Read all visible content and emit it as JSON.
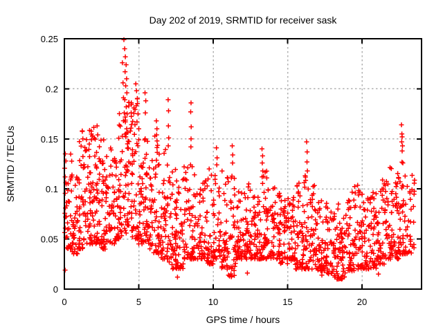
{
  "figure": {
    "background": "#ffffff",
    "text_color": "#000000",
    "frame_color": "#000000",
    "grid_color": "#b0b0b0"
  },
  "chart_data": {
    "type": "scatter",
    "title": "Day 202 of 2019, SRMTID for receiver sask",
    "xlabel": "GPS time / hours",
    "ylabel": "SRMTID / TECUs",
    "xlim": [
      0,
      24
    ],
    "ylim": [
      0,
      0.25
    ],
    "xticks": [
      {
        "v": 0,
        "label": "0"
      },
      {
        "v": 5,
        "label": "5"
      },
      {
        "v": 10,
        "label": "10"
      },
      {
        "v": 15,
        "label": "15"
      },
      {
        "v": 20,
        "label": "20"
      }
    ],
    "yticks": [
      {
        "v": 0,
        "label": "0"
      },
      {
        "v": 0.05,
        "label": "0.05"
      },
      {
        "v": 0.1,
        "label": "0.1"
      },
      {
        "v": 0.15,
        "label": "0.15"
      },
      {
        "v": 0.2,
        "label": "0.2"
      },
      {
        "v": 0.25,
        "label": "0.25"
      }
    ],
    "grid": true,
    "legend": "none",
    "series": [
      {
        "name": "SRMTID",
        "marker": "plus",
        "color": "#ff0000",
        "density_bins_format": [
          "hour_start",
          "hour_end",
          "y_min",
          "y_max",
          "point_count",
          "skew_toward_min"
        ],
        "density_bins": [
          [
            0.0,
            0.5,
            0.04,
            0.14,
            40,
            1.6
          ],
          [
            0.5,
            1.0,
            0.035,
            0.125,
            40,
            1.7
          ],
          [
            1.0,
            1.5,
            0.04,
            0.158,
            45,
            1.7
          ],
          [
            1.5,
            2.0,
            0.045,
            0.162,
            45,
            1.7
          ],
          [
            2.0,
            2.5,
            0.045,
            0.158,
            45,
            1.7
          ],
          [
            2.5,
            3.0,
            0.04,
            0.15,
            45,
            1.8
          ],
          [
            3.0,
            3.5,
            0.045,
            0.145,
            42,
            1.8
          ],
          [
            3.5,
            4.0,
            0.05,
            0.185,
            45,
            2.0
          ],
          [
            4.0,
            4.5,
            0.055,
            0.2,
            48,
            1.5
          ],
          [
            4.5,
            5.0,
            0.05,
            0.195,
            48,
            1.5
          ],
          [
            5.0,
            5.5,
            0.045,
            0.165,
            42,
            2.0
          ],
          [
            5.5,
            6.0,
            0.04,
            0.15,
            40,
            1.9
          ],
          [
            6.0,
            6.5,
            0.035,
            0.155,
            42,
            2.0
          ],
          [
            6.5,
            7.0,
            0.03,
            0.145,
            42,
            2.0
          ],
          [
            7.0,
            7.5,
            0.02,
            0.12,
            40,
            1.8
          ],
          [
            7.5,
            8.0,
            0.02,
            0.115,
            40,
            1.8
          ],
          [
            8.0,
            8.5,
            0.03,
            0.125,
            38,
            1.9
          ],
          [
            8.5,
            9.0,
            0.03,
            0.128,
            38,
            1.9
          ],
          [
            9.0,
            9.5,
            0.03,
            0.11,
            38,
            1.8
          ],
          [
            9.5,
            10.0,
            0.025,
            0.122,
            38,
            1.9
          ],
          [
            10.0,
            10.5,
            0.03,
            0.115,
            38,
            1.8
          ],
          [
            10.5,
            11.0,
            0.02,
            0.118,
            38,
            1.9
          ],
          [
            11.0,
            11.5,
            0.012,
            0.12,
            38,
            1.9
          ],
          [
            11.5,
            12.0,
            0.03,
            0.102,
            38,
            1.8
          ],
          [
            12.0,
            12.5,
            0.03,
            0.108,
            38,
            1.8
          ],
          [
            12.5,
            13.0,
            0.03,
            0.1,
            38,
            1.8
          ],
          [
            13.0,
            13.5,
            0.03,
            0.12,
            38,
            1.9
          ],
          [
            13.5,
            14.0,
            0.03,
            0.118,
            38,
            1.9
          ],
          [
            14.0,
            14.5,
            0.03,
            0.102,
            38,
            1.8
          ],
          [
            14.5,
            15.0,
            0.025,
            0.095,
            38,
            1.7
          ],
          [
            15.0,
            15.5,
            0.028,
            0.095,
            38,
            1.7
          ],
          [
            15.5,
            16.0,
            0.02,
            0.112,
            38,
            1.8
          ],
          [
            16.0,
            16.5,
            0.02,
            0.122,
            40,
            1.9
          ],
          [
            16.5,
            17.0,
            0.02,
            0.108,
            38,
            1.8
          ],
          [
            17.0,
            17.5,
            0.018,
            0.098,
            38,
            1.8
          ],
          [
            17.5,
            18.0,
            0.015,
            0.09,
            38,
            1.7
          ],
          [
            18.0,
            18.5,
            0.01,
            0.088,
            38,
            1.7
          ],
          [
            18.5,
            19.0,
            0.01,
            0.092,
            38,
            1.7
          ],
          [
            19.0,
            19.5,
            0.018,
            0.102,
            38,
            1.8
          ],
          [
            19.5,
            20.0,
            0.02,
            0.108,
            38,
            1.8
          ],
          [
            20.0,
            20.5,
            0.02,
            0.095,
            38,
            1.7
          ],
          [
            20.5,
            21.0,
            0.02,
            0.102,
            38,
            1.8
          ],
          [
            21.0,
            21.5,
            0.025,
            0.112,
            38,
            1.8
          ],
          [
            21.5,
            22.0,
            0.03,
            0.125,
            40,
            1.9
          ],
          [
            22.0,
            22.5,
            0.03,
            0.122,
            40,
            1.9
          ],
          [
            22.5,
            23.0,
            0.035,
            0.128,
            40,
            1.9
          ],
          [
            23.0,
            23.55,
            0.035,
            0.115,
            30,
            1.6
          ]
        ],
        "feature_points_format": [
          "hour",
          "srmtid_tecus"
        ],
        "feature_points": [
          [
            0.06,
            0.135
          ],
          [
            0.1,
            0.128
          ],
          [
            0.05,
            0.112
          ],
          [
            0.12,
            0.105
          ],
          [
            0.05,
            0.019
          ],
          [
            1.2,
            0.158
          ],
          [
            1.24,
            0.15
          ],
          [
            2.2,
            0.163
          ],
          [
            2.24,
            0.154
          ],
          [
            3.9,
            0.226
          ],
          [
            3.94,
            0.206
          ],
          [
            3.97,
            0.191
          ],
          [
            4.0,
            0.249
          ],
          [
            4.05,
            0.24
          ],
          [
            4.1,
            0.232
          ],
          [
            4.15,
            0.224
          ],
          [
            4.08,
            0.217
          ],
          [
            4.18,
            0.21
          ],
          [
            4.12,
            0.203
          ],
          [
            4.2,
            0.196
          ],
          [
            4.06,
            0.189
          ],
          [
            4.16,
            0.182
          ],
          [
            4.22,
            0.175
          ],
          [
            4.1,
            0.167
          ],
          [
            4.19,
            0.16
          ],
          [
            4.13,
            0.152
          ],
          [
            4.24,
            0.145
          ],
          [
            4.8,
            0.205
          ],
          [
            4.85,
            0.198
          ],
          [
            4.9,
            0.19
          ],
          [
            4.83,
            0.183
          ],
          [
            4.95,
            0.175
          ],
          [
            4.88,
            0.167
          ],
          [
            5.0,
            0.16
          ],
          [
            5.42,
            0.196
          ],
          [
            5.47,
            0.188
          ],
          [
            5.44,
            0.176
          ],
          [
            6.18,
            0.168
          ],
          [
            6.22,
            0.16
          ],
          [
            6.2,
            0.154
          ],
          [
            6.23,
            0.148
          ],
          [
            6.97,
            0.189
          ],
          [
            7.0,
            0.178
          ],
          [
            6.99,
            0.163
          ],
          [
            7.01,
            0.151
          ],
          [
            6.98,
            0.143
          ],
          [
            8.51,
            0.186
          ],
          [
            8.49,
            0.177
          ],
          [
            8.52,
            0.162
          ],
          [
            8.51,
            0.15
          ],
          [
            8.5,
            0.142
          ],
          [
            10.22,
            0.141
          ],
          [
            10.26,
            0.131
          ],
          [
            10.24,
            0.124
          ],
          [
            11.28,
            0.143
          ],
          [
            11.31,
            0.134
          ],
          [
            11.3,
            0.126
          ],
          [
            13.28,
            0.14
          ],
          [
            13.32,
            0.133
          ],
          [
            13.3,
            0.126
          ],
          [
            13.33,
            0.118
          ],
          [
            13.29,
            0.112
          ],
          [
            16.28,
            0.147
          ],
          [
            16.31,
            0.137
          ],
          [
            16.3,
            0.127
          ],
          [
            16.33,
            0.118
          ],
          [
            22.65,
            0.164
          ],
          [
            22.68,
            0.155
          ],
          [
            22.7,
            0.152
          ],
          [
            22.67,
            0.147
          ],
          [
            22.72,
            0.143
          ],
          [
            22.7,
            0.138
          ],
          [
            7.6,
            0.012
          ],
          [
            11.1,
            0.013
          ],
          [
            12.3,
            0.016
          ],
          [
            17.3,
            0.014
          ],
          [
            18.4,
            0.01
          ],
          [
            18.8,
            0.012
          ],
          [
            21.1,
            0.015
          ]
        ]
      }
    ]
  }
}
